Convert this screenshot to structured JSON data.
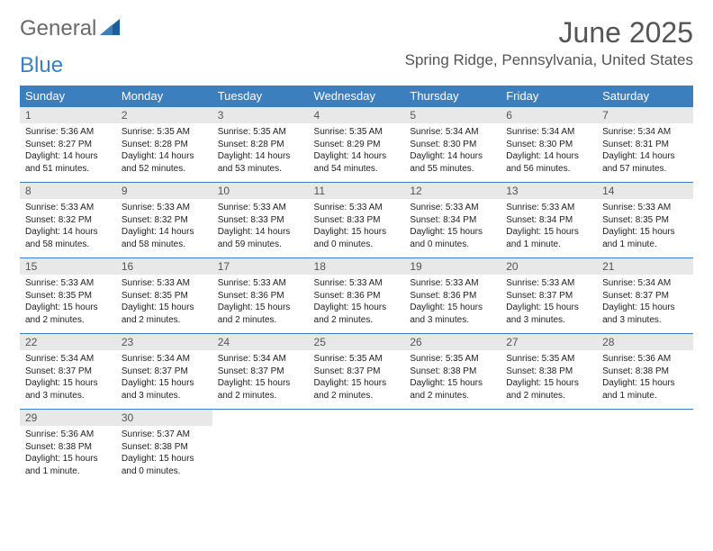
{
  "logo": {
    "text1": "General",
    "text2": "Blue"
  },
  "header": {
    "month": "June 2025",
    "location": "Spring Ridge, Pennsylvania, United States"
  },
  "colors": {
    "header_bg": "#3b7fbf",
    "header_text": "#ffffff",
    "daynum_bg": "#e8e8e8",
    "daynum_text": "#555555",
    "body_text": "#222222"
  },
  "days_of_week": [
    "Sunday",
    "Monday",
    "Tuesday",
    "Wednesday",
    "Thursday",
    "Friday",
    "Saturday"
  ],
  "weeks": [
    [
      {
        "n": "1",
        "sr": "Sunrise: 5:36 AM",
        "ss": "Sunset: 8:27 PM",
        "d1": "Daylight: 14 hours",
        "d2": "and 51 minutes."
      },
      {
        "n": "2",
        "sr": "Sunrise: 5:35 AM",
        "ss": "Sunset: 8:28 PM",
        "d1": "Daylight: 14 hours",
        "d2": "and 52 minutes."
      },
      {
        "n": "3",
        "sr": "Sunrise: 5:35 AM",
        "ss": "Sunset: 8:28 PM",
        "d1": "Daylight: 14 hours",
        "d2": "and 53 minutes."
      },
      {
        "n": "4",
        "sr": "Sunrise: 5:35 AM",
        "ss": "Sunset: 8:29 PM",
        "d1": "Daylight: 14 hours",
        "d2": "and 54 minutes."
      },
      {
        "n": "5",
        "sr": "Sunrise: 5:34 AM",
        "ss": "Sunset: 8:30 PM",
        "d1": "Daylight: 14 hours",
        "d2": "and 55 minutes."
      },
      {
        "n": "6",
        "sr": "Sunrise: 5:34 AM",
        "ss": "Sunset: 8:30 PM",
        "d1": "Daylight: 14 hours",
        "d2": "and 56 minutes."
      },
      {
        "n": "7",
        "sr": "Sunrise: 5:34 AM",
        "ss": "Sunset: 8:31 PM",
        "d1": "Daylight: 14 hours",
        "d2": "and 57 minutes."
      }
    ],
    [
      {
        "n": "8",
        "sr": "Sunrise: 5:33 AM",
        "ss": "Sunset: 8:32 PM",
        "d1": "Daylight: 14 hours",
        "d2": "and 58 minutes."
      },
      {
        "n": "9",
        "sr": "Sunrise: 5:33 AM",
        "ss": "Sunset: 8:32 PM",
        "d1": "Daylight: 14 hours",
        "d2": "and 58 minutes."
      },
      {
        "n": "10",
        "sr": "Sunrise: 5:33 AM",
        "ss": "Sunset: 8:33 PM",
        "d1": "Daylight: 14 hours",
        "d2": "and 59 minutes."
      },
      {
        "n": "11",
        "sr": "Sunrise: 5:33 AM",
        "ss": "Sunset: 8:33 PM",
        "d1": "Daylight: 15 hours",
        "d2": "and 0 minutes."
      },
      {
        "n": "12",
        "sr": "Sunrise: 5:33 AM",
        "ss": "Sunset: 8:34 PM",
        "d1": "Daylight: 15 hours",
        "d2": "and 0 minutes."
      },
      {
        "n": "13",
        "sr": "Sunrise: 5:33 AM",
        "ss": "Sunset: 8:34 PM",
        "d1": "Daylight: 15 hours",
        "d2": "and 1 minute."
      },
      {
        "n": "14",
        "sr": "Sunrise: 5:33 AM",
        "ss": "Sunset: 8:35 PM",
        "d1": "Daylight: 15 hours",
        "d2": "and 1 minute."
      }
    ],
    [
      {
        "n": "15",
        "sr": "Sunrise: 5:33 AM",
        "ss": "Sunset: 8:35 PM",
        "d1": "Daylight: 15 hours",
        "d2": "and 2 minutes."
      },
      {
        "n": "16",
        "sr": "Sunrise: 5:33 AM",
        "ss": "Sunset: 8:35 PM",
        "d1": "Daylight: 15 hours",
        "d2": "and 2 minutes."
      },
      {
        "n": "17",
        "sr": "Sunrise: 5:33 AM",
        "ss": "Sunset: 8:36 PM",
        "d1": "Daylight: 15 hours",
        "d2": "and 2 minutes."
      },
      {
        "n": "18",
        "sr": "Sunrise: 5:33 AM",
        "ss": "Sunset: 8:36 PM",
        "d1": "Daylight: 15 hours",
        "d2": "and 2 minutes."
      },
      {
        "n": "19",
        "sr": "Sunrise: 5:33 AM",
        "ss": "Sunset: 8:36 PM",
        "d1": "Daylight: 15 hours",
        "d2": "and 3 minutes."
      },
      {
        "n": "20",
        "sr": "Sunrise: 5:33 AM",
        "ss": "Sunset: 8:37 PM",
        "d1": "Daylight: 15 hours",
        "d2": "and 3 minutes."
      },
      {
        "n": "21",
        "sr": "Sunrise: 5:34 AM",
        "ss": "Sunset: 8:37 PM",
        "d1": "Daylight: 15 hours",
        "d2": "and 3 minutes."
      }
    ],
    [
      {
        "n": "22",
        "sr": "Sunrise: 5:34 AM",
        "ss": "Sunset: 8:37 PM",
        "d1": "Daylight: 15 hours",
        "d2": "and 3 minutes."
      },
      {
        "n": "23",
        "sr": "Sunrise: 5:34 AM",
        "ss": "Sunset: 8:37 PM",
        "d1": "Daylight: 15 hours",
        "d2": "and 3 minutes."
      },
      {
        "n": "24",
        "sr": "Sunrise: 5:34 AM",
        "ss": "Sunset: 8:37 PM",
        "d1": "Daylight: 15 hours",
        "d2": "and 2 minutes."
      },
      {
        "n": "25",
        "sr": "Sunrise: 5:35 AM",
        "ss": "Sunset: 8:37 PM",
        "d1": "Daylight: 15 hours",
        "d2": "and 2 minutes."
      },
      {
        "n": "26",
        "sr": "Sunrise: 5:35 AM",
        "ss": "Sunset: 8:38 PM",
        "d1": "Daylight: 15 hours",
        "d2": "and 2 minutes."
      },
      {
        "n": "27",
        "sr": "Sunrise: 5:35 AM",
        "ss": "Sunset: 8:38 PM",
        "d1": "Daylight: 15 hours",
        "d2": "and 2 minutes."
      },
      {
        "n": "28",
        "sr": "Sunrise: 5:36 AM",
        "ss": "Sunset: 8:38 PM",
        "d1": "Daylight: 15 hours",
        "d2": "and 1 minute."
      }
    ],
    [
      {
        "n": "29",
        "sr": "Sunrise: 5:36 AM",
        "ss": "Sunset: 8:38 PM",
        "d1": "Daylight: 15 hours",
        "d2": "and 1 minute."
      },
      {
        "n": "30",
        "sr": "Sunrise: 5:37 AM",
        "ss": "Sunset: 8:38 PM",
        "d1": "Daylight: 15 hours",
        "d2": "and 0 minutes."
      },
      null,
      null,
      null,
      null,
      null
    ]
  ]
}
